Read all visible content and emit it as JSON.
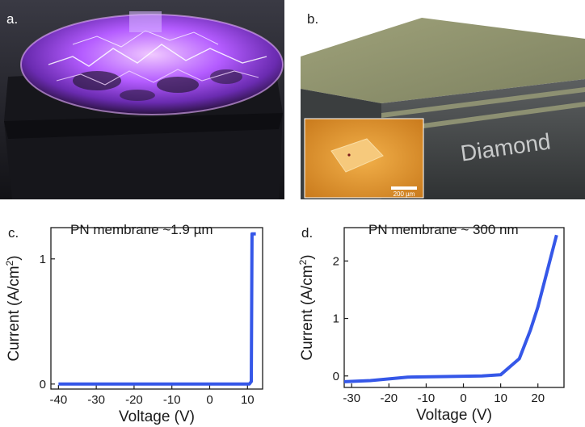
{
  "panels": {
    "a": {
      "letter": "a."
    },
    "b": {
      "letter": "b.",
      "block_label": "Diamond",
      "inset_scale": "200 µm"
    }
  },
  "colors": {
    "series": "#3557e8",
    "axis": "#1a1a1a",
    "glow": "#b45cff"
  },
  "chart_data": [
    {
      "type": "line",
      "panel_letter": "c.",
      "title": "PN membrane ~1.9 µm",
      "xlabel": "Voltage (V)",
      "ylabel_main": "Current (A/cm",
      "ylabel_sup": "2",
      "ylabel_close": ")",
      "xlim": [
        -42,
        14
      ],
      "ylim": [
        -0.04,
        1.25
      ],
      "xticks": [
        -40,
        -30,
        -20,
        -10,
        0,
        10
      ],
      "xtick_labels": [
        "-40",
        "-30",
        "-20",
        "-10",
        "0",
        "10"
      ],
      "yticks": [
        0,
        1
      ],
      "ytick_labels": [
        "0",
        "1"
      ],
      "series": [
        {
          "x": [
            -40,
            10.5,
            11.0,
            11.2,
            12.2
          ],
          "y": [
            0,
            0,
            0.02,
            1.2,
            1.2
          ]
        }
      ]
    },
    {
      "type": "line",
      "panel_letter": "d.",
      "title": "PN membrane ~ 300 nm",
      "xlabel": "Voltage (V)",
      "ylabel_main": "Current (A/cm",
      "ylabel_sup": "2",
      "ylabel_close": ")",
      "xlim": [
        -32,
        27
      ],
      "ylim": [
        -0.2,
        2.58
      ],
      "xticks": [
        -30,
        -20,
        -10,
        0,
        10,
        20
      ],
      "xtick_labels": [
        "-30",
        "-20",
        "-10",
        "0",
        "10",
        "20"
      ],
      "yticks": [
        0,
        1,
        2
      ],
      "ytick_labels": [
        "0",
        "1",
        "2"
      ],
      "series": [
        {
          "x": [
            -32,
            -25,
            -15,
            -5,
            5,
            10,
            15,
            18,
            20,
            22,
            25
          ],
          "y": [
            -0.1,
            -0.08,
            -0.02,
            -0.01,
            0,
            0.02,
            0.3,
            0.8,
            1.2,
            1.7,
            2.45
          ]
        }
      ]
    }
  ]
}
